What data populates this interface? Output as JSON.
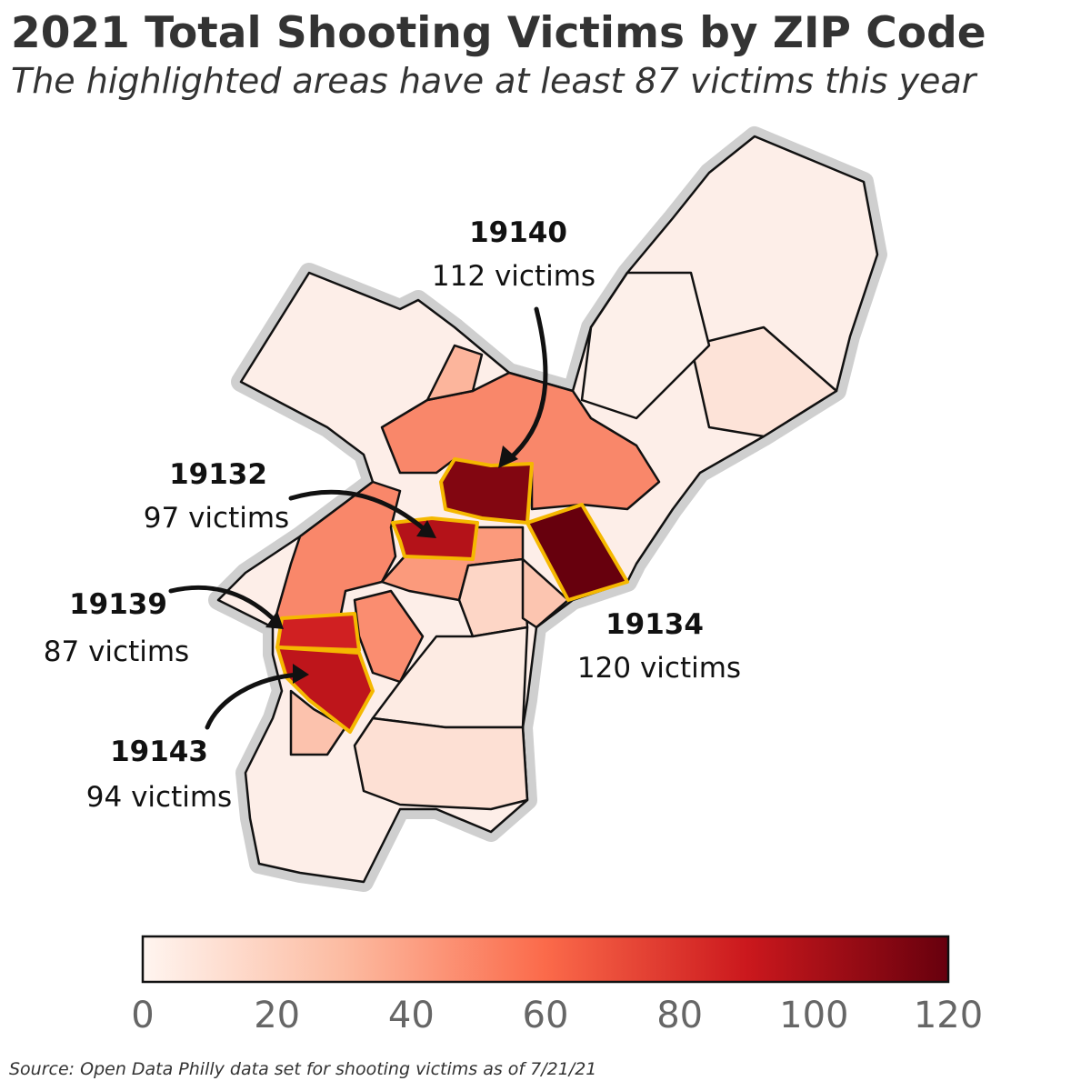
{
  "title": "2021 Total Shooting Victims by ZIP Code",
  "subtitle": "The highlighted areas have at least 87 victims this year",
  "map": {
    "type": "choropleth",
    "colorscale": {
      "colors": [
        "#fff5f0",
        "#fcbba1",
        "#fb6a4a",
        "#cb181d",
        "#67000d"
      ],
      "lim": [
        0,
        120
      ],
      "ticks": [
        0,
        20,
        40,
        60,
        80,
        100,
        120
      ]
    },
    "highlight_color": "#f5b800",
    "annotations": [
      {
        "zip": "19140",
        "value": 112,
        "label": "112 victims"
      },
      {
        "zip": "19132",
        "value": 97,
        "label": "97 victims"
      },
      {
        "zip": "19139",
        "value": 87,
        "label": "87 victims"
      },
      {
        "zip": "19134",
        "value": 120,
        "label": "120 victims"
      },
      {
        "zip": "19143",
        "value": 94,
        "label": "94 victims"
      }
    ]
  },
  "source": "Source: Open Data Philly data set for shooting victims as of 7/21/21"
}
